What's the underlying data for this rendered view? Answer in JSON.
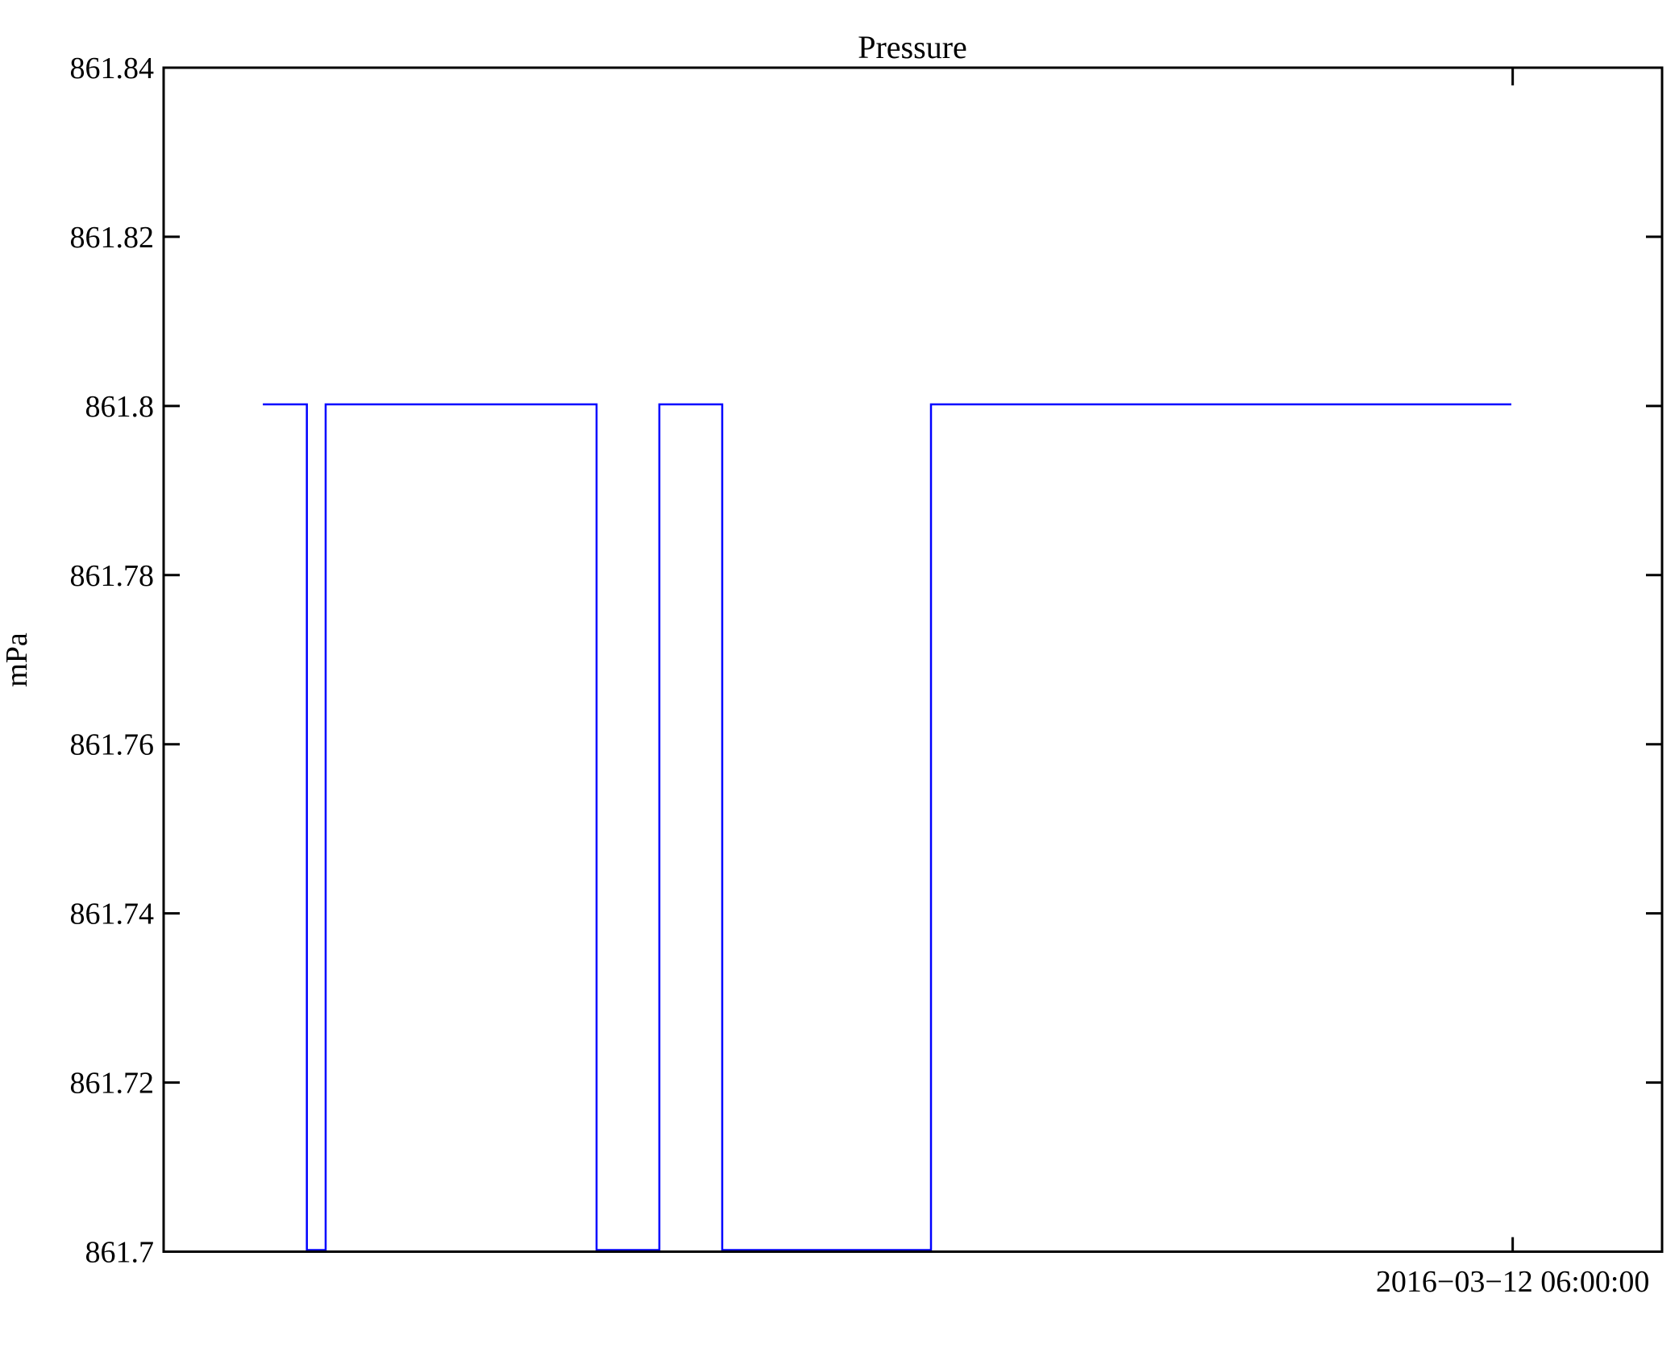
{
  "background_color": "#ffffff",
  "axis_color": "#000000",
  "chart_data": {
    "type": "line",
    "title": "Pressure",
    "xlabel": "",
    "ylabel": "mPa",
    "ylim": [
      861.7,
      861.84
    ],
    "grid": false,
    "legend": "none",
    "line_color": "#0000ff",
    "y_ticks": [
      {
        "value": 861.7,
        "label": "861.7"
      },
      {
        "value": 861.72,
        "label": "861.72"
      },
      {
        "value": 861.74,
        "label": "861.74"
      },
      {
        "value": 861.76,
        "label": "861.76"
      },
      {
        "value": 861.78,
        "label": "861.78"
      },
      {
        "value": 861.8,
        "label": "861.8"
      },
      {
        "value": 861.82,
        "label": "861.82"
      },
      {
        "value": 861.84,
        "label": "861.84"
      }
    ],
    "x_ticks": [
      {
        "frac": 0.9003,
        "label": "2016−03−12 06:00:00"
      }
    ],
    "series": [
      {
        "name": "pressure",
        "unit": "mPa",
        "points": [
          {
            "x_frac": 0.0662,
            "value": 861.8,
            "est_time": "00:26"
          },
          {
            "x_frac": 0.0956,
            "value": 861.8,
            "est_time": "00:38"
          },
          {
            "x_frac": 0.0956,
            "value": 861.7,
            "est_time": "00:38"
          },
          {
            "x_frac": 0.1081,
            "value": 861.7,
            "est_time": "00:43"
          },
          {
            "x_frac": 0.1081,
            "value": 861.8,
            "est_time": "00:43"
          },
          {
            "x_frac": 0.2889,
            "value": 861.8,
            "est_time": "01:56"
          },
          {
            "x_frac": 0.2889,
            "value": 861.7,
            "est_time": "01:56"
          },
          {
            "x_frac": 0.3308,
            "value": 861.7,
            "est_time": "02:12"
          },
          {
            "x_frac": 0.3308,
            "value": 861.8,
            "est_time": "02:12"
          },
          {
            "x_frac": 0.3728,
            "value": 861.8,
            "est_time": "02:29"
          },
          {
            "x_frac": 0.3728,
            "value": 861.7,
            "est_time": "02:29"
          },
          {
            "x_frac": 0.5121,
            "value": 861.7,
            "est_time": "03:25"
          },
          {
            "x_frac": 0.5121,
            "value": 861.8,
            "est_time": "03:25"
          },
          {
            "x_frac": 0.8994,
            "value": 861.8,
            "est_time": "06:00"
          }
        ]
      }
    ]
  }
}
